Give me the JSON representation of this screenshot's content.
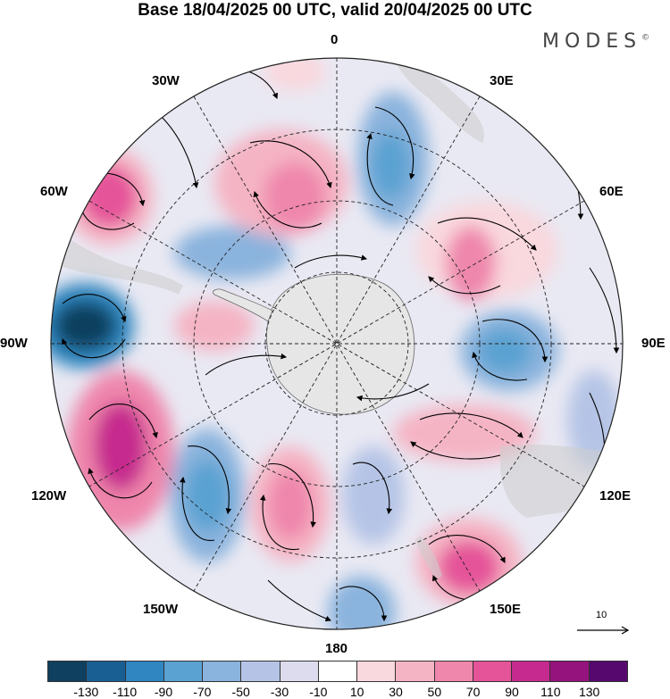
{
  "title": "Base 18/04/2025 00 UTC, valid 20/04/2025 00 UTC",
  "brand": {
    "name": "MODES",
    "mark": "©"
  },
  "map": {
    "projection": "south-polar-stereographic",
    "longitude_labels": {
      "top": "0",
      "bottom": "180",
      "left": "90W",
      "right": "90E",
      "nw1": "30W",
      "nw2": "60W",
      "sw1": "120W",
      "sw2": "150W",
      "ne1": "30E",
      "ne2": "60E",
      "se1": "120E",
      "se2": "150E"
    },
    "reference_vector": {
      "label": "10"
    }
  },
  "colorbar": {
    "colors": [
      "#10405f",
      "#1a5f93",
      "#2f86c0",
      "#5aa2d2",
      "#8ab3dd",
      "#b5c4e6",
      "#dcdcee",
      "#ffffff",
      "#f9d8de",
      "#f5b4c4",
      "#ef86ac",
      "#e55399",
      "#c62a8e",
      "#94137c",
      "#56086e"
    ],
    "tick_labels": [
      "-130",
      "-110",
      "-90",
      "-70",
      "-50",
      "-30",
      "-10",
      "10",
      "30",
      "50",
      "70",
      "90",
      "110",
      "130"
    ]
  }
}
